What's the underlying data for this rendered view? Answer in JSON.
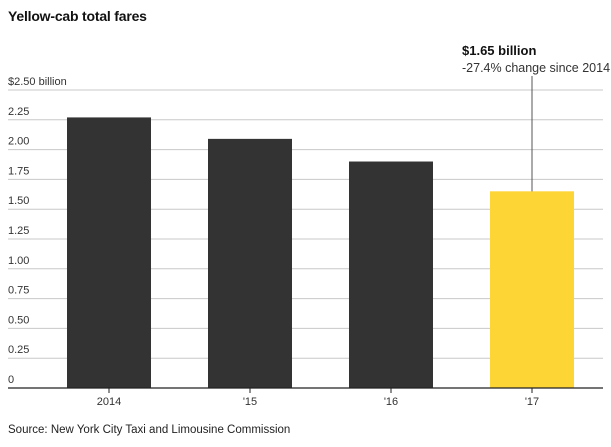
{
  "title": "Yellow-cab total fares",
  "source": "Source: New York City Taxi and Limousine Commission",
  "chart_data": {
    "type": "bar",
    "title": "Yellow-cab total fares",
    "categories": [
      "2014",
      "'15",
      "'16",
      "'17"
    ],
    "values": [
      2.27,
      2.09,
      1.9,
      1.65
    ],
    "ylim": [
      0,
      2.5
    ],
    "y_ticks": [
      {
        "value": 0,
        "label": "0"
      },
      {
        "value": 0.25,
        "label": "0.25"
      },
      {
        "value": 0.5,
        "label": "0.50"
      },
      {
        "value": 0.75,
        "label": "0.75"
      },
      {
        "value": 1.0,
        "label": "1.00"
      },
      {
        "value": 1.25,
        "label": "1.25"
      },
      {
        "value": 1.5,
        "label": "1.50"
      },
      {
        "value": 1.75,
        "label": "1.75"
      },
      {
        "value": 2.0,
        "label": "2.00"
      },
      {
        "value": 2.25,
        "label": "2.25"
      },
      {
        "value": 2.5,
        "label": "$2.50 billion"
      }
    ],
    "grid": true,
    "colors": {
      "bar": "#333333",
      "highlight": "#fdd535",
      "grid": "#c8c8c8",
      "axis": "#222222"
    },
    "highlight_index": 3,
    "annotation": {
      "index": 3,
      "line1": "$1.65 billion",
      "line2": "-27.4% change since 2014"
    }
  }
}
